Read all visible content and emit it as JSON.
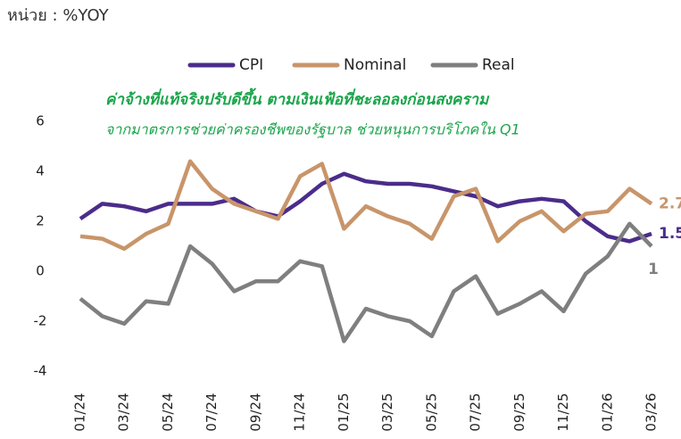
{
  "chart_data": {
    "type": "line",
    "unit_label": "หน่วย : %YOY",
    "title": "ค่าจ้างที่แท้จริงปรับดีขึ้น ตามเงินเฟ้อที่ชะลอลงก่อนสงคราม",
    "subtitle": "จากมาตรการช่วยค่าครองชีพของรัฐบาล ช่วยหนุนการบริโภคใน Q1",
    "categories": [
      "01/24",
      null,
      "03/24",
      null,
      "05/24",
      null,
      "07/24",
      null,
      "09/24",
      null,
      "11/24",
      null,
      "01/25",
      null,
      "03/25",
      null,
      "05/25",
      null,
      "07/25",
      null,
      "09/25",
      null,
      "11/25",
      null,
      "01/26",
      null,
      "03/26"
    ],
    "series": [
      {
        "name": "CPI",
        "color": "#4b2c8a",
        "values": [
          2.1,
          2.7,
          2.6,
          2.4,
          2.7,
          2.7,
          2.7,
          2.9,
          2.4,
          2.2,
          2.8,
          3.5,
          3.9,
          3.6,
          3.5,
          3.5,
          3.4,
          3.2,
          3.0,
          2.6,
          2.8,
          2.9,
          2.8,
          2.0,
          1.4,
          1.2,
          1.5
        ]
      },
      {
        "name": "Nominal",
        "color": "#c8956a",
        "values": [
          1.4,
          1.3,
          0.9,
          1.5,
          1.9,
          4.4,
          3.3,
          2.7,
          2.4,
          2.1,
          3.8,
          4.3,
          1.7,
          2.6,
          2.2,
          1.9,
          1.3,
          3.0,
          3.3,
          1.2,
          2.0,
          2.4,
          1.6,
          2.3,
          2.4,
          3.3,
          2.7
        ]
      },
      {
        "name": "Real",
        "color": "#7f7f7f",
        "values": [
          -1.1,
          -1.8,
          -2.1,
          -1.2,
          -1.3,
          1.0,
          0.3,
          -0.8,
          -0.4,
          -0.4,
          0.4,
          0.2,
          -2.8,
          -1.5,
          -1.8,
          -2.0,
          -2.6,
          -0.8,
          -0.2,
          -1.7,
          -1.3,
          -0.8,
          -1.6,
          -0.1,
          0.6,
          1.9,
          1
        ]
      }
    ],
    "ylim": [
      -4,
      6
    ],
    "yticks": [
      -4,
      -2,
      0,
      2,
      4,
      6
    ],
    "grid": false,
    "legend": "top"
  }
}
